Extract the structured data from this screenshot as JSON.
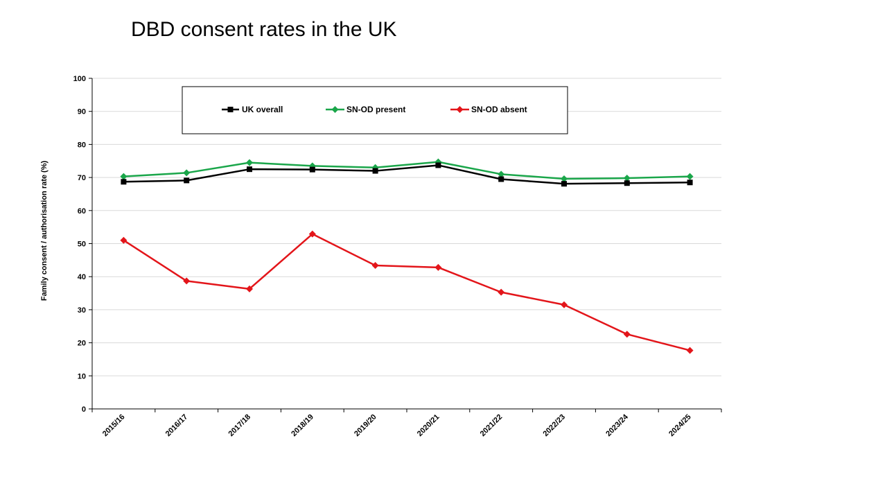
{
  "slide": {
    "title": "DBD consent rates in the UK"
  },
  "chart_data": {
    "type": "line",
    "title": "DBD consent rates in the UK",
    "xlabel": "",
    "ylabel": "Family consent / authorisation rate (%)",
    "ylim": [
      0,
      100
    ],
    "yticks": [
      0,
      10,
      20,
      30,
      40,
      50,
      60,
      70,
      80,
      90,
      100
    ],
    "grid": true,
    "legend_position": "top",
    "categories": [
      "2015/16",
      "2016/17",
      "2017/18",
      "2018/19",
      "2019/20",
      "2020/21",
      "2021/22",
      "2022/23",
      "2023/24",
      "2024/25"
    ],
    "series": [
      {
        "name": "UK overall",
        "color": "#000000",
        "marker": "square",
        "values": [
          68.7,
          69.1,
          72.5,
          72.4,
          72.0,
          73.7,
          69.5,
          68.1,
          68.3,
          68.5
        ]
      },
      {
        "name": "SN-OD present",
        "color": "#1aa64a",
        "marker": "diamond",
        "values": [
          70.3,
          71.4,
          74.5,
          73.5,
          73.0,
          74.7,
          71.0,
          69.6,
          69.8,
          70.3
        ]
      },
      {
        "name": "SN-OD absent",
        "color": "#e3151a",
        "marker": "diamond",
        "values": [
          51.0,
          38.7,
          36.3,
          52.9,
          43.4,
          42.8,
          35.3,
          31.5,
          22.6,
          17.7
        ]
      }
    ]
  }
}
